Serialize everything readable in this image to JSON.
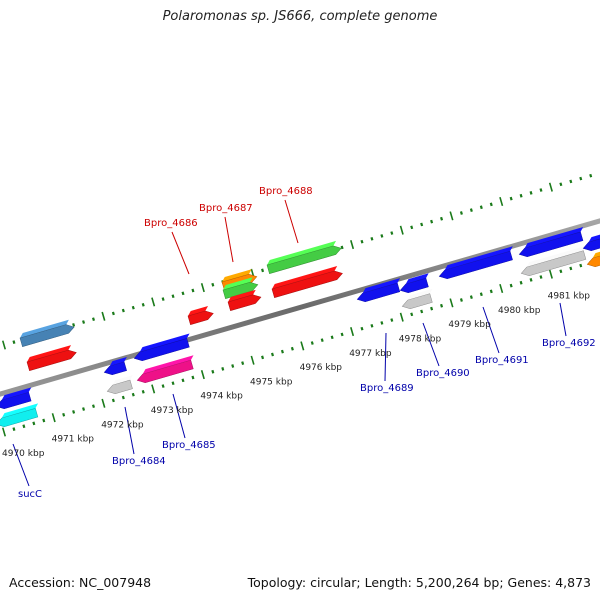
{
  "title": "Polaromonas sp. JS666, complete genome",
  "footer": {
    "accession": "Accession: NC_007948",
    "summary": "Topology: circular; Length: 5,200,264 bp; Genes: 4,873"
  },
  "colors": {
    "backbone": "#7a7a7a",
    "tick": "#1a7a1a",
    "red_label": "#cc0000",
    "blue_label": "#0000aa",
    "red": "#ee1111",
    "blue": "#1111ee",
    "green": "#44cc44",
    "orange": "#ff8800",
    "gray": "#c8c8c8",
    "steel": "#4682b4",
    "magenta": "#ee1188",
    "cyan": "#11eeee"
  },
  "kbp_labels": [
    {
      "text": "4970 kbp",
      "kbp": 4970
    },
    {
      "text": "4971 kbp",
      "kbp": 4971
    },
    {
      "text": "4972 kbp",
      "kbp": 4972
    },
    {
      "text": "4973 kbp",
      "kbp": 4973
    },
    {
      "text": "4974 kbp",
      "kbp": 4974
    },
    {
      "text": "4975 kbp",
      "kbp": 4975
    },
    {
      "text": "4976 kbp",
      "kbp": 4976
    },
    {
      "text": "4977 kbp",
      "kbp": 4977
    },
    {
      "text": "4978 kbp",
      "kbp": 4978
    },
    {
      "text": "4979 kbp",
      "kbp": 4979
    },
    {
      "text": "4980 kbp",
      "kbp": 4980
    },
    {
      "text": "4981 kbp",
      "kbp": 4981
    }
  ],
  "gene_labels": [
    {
      "text": "Bpro_4686",
      "color": "red_label"
    },
    {
      "text": "Bpro_4687",
      "color": "red_label"
    },
    {
      "text": "Bpro_4688",
      "color": "red_label"
    },
    {
      "text": "sucC",
      "color": "blue_label"
    },
    {
      "text": "Bpro_4684",
      "color": "blue_label"
    },
    {
      "text": "Bpro_4685",
      "color": "blue_label"
    },
    {
      "text": "Bpro_4689",
      "color": "blue_label"
    },
    {
      "text": "Bpro_4690",
      "color": "blue_label"
    },
    {
      "text": "Bpro_4691",
      "color": "blue_label"
    },
    {
      "text": "Bpro_4692",
      "color": "blue_label"
    }
  ],
  "features": [
    {
      "color": "steel",
      "direction": "forward",
      "strand": "upper"
    },
    {
      "color": "red",
      "direction": "forward",
      "strand": "upper"
    },
    {
      "color": "red",
      "direction": "forward",
      "strand": "upper"
    },
    {
      "color": "orange",
      "direction": "forward",
      "strand": "upper"
    },
    {
      "color": "green",
      "direction": "forward",
      "strand": "upper"
    },
    {
      "color": "red",
      "direction": "forward",
      "strand": "upper"
    },
    {
      "color": "green",
      "direction": "forward",
      "strand": "upper"
    },
    {
      "color": "red",
      "direction": "forward",
      "strand": "upper"
    },
    {
      "color": "blue",
      "direction": "reverse",
      "strand": "lower"
    },
    {
      "color": "cyan",
      "direction": "reverse",
      "strand": "lower"
    },
    {
      "color": "blue",
      "direction": "reverse",
      "strand": "lower"
    },
    {
      "color": "gray",
      "direction": "reverse",
      "strand": "lower"
    },
    {
      "color": "blue",
      "direction": "reverse",
      "strand": "lower"
    },
    {
      "color": "magenta",
      "direction": "reverse",
      "strand": "lower"
    },
    {
      "color": "blue",
      "direction": "reverse",
      "strand": "lower"
    },
    {
      "color": "blue",
      "direction": "reverse",
      "strand": "lower"
    },
    {
      "color": "gray",
      "direction": "reverse",
      "strand": "lower"
    },
    {
      "color": "blue",
      "direction": "reverse",
      "strand": "lower"
    },
    {
      "color": "blue",
      "direction": "reverse",
      "strand": "lower"
    },
    {
      "color": "gray",
      "direction": "reverse",
      "strand": "lower"
    },
    {
      "color": "blue",
      "direction": "reverse",
      "strand": "lower"
    },
    {
      "color": "orange",
      "direction": "reverse",
      "strand": "lower"
    }
  ]
}
